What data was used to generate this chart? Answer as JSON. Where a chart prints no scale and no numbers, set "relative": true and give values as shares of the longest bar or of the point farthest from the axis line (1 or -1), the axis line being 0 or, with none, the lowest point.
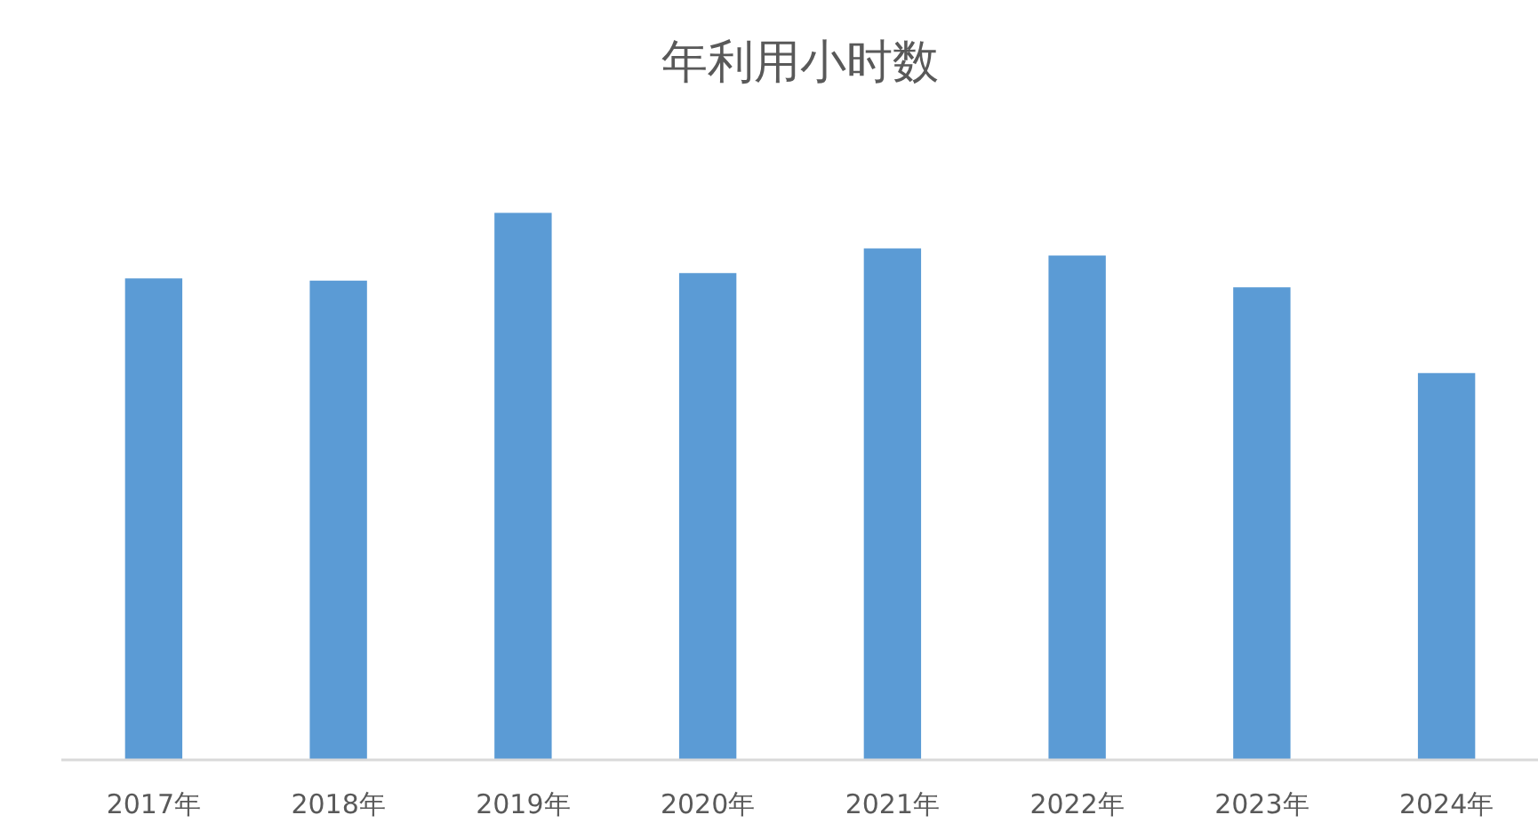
{
  "chart_data": {
    "type": "bar",
    "title": "年利用小时数",
    "categories": [
      "2017年",
      "2018年",
      "2019年",
      "2020年",
      "2021年",
      "2022年",
      "2023年",
      "2024年"
    ],
    "values": [
      0.88,
      0.876,
      1,
      0.89,
      0.935,
      0.922,
      0.864,
      0.707
    ],
    "color": "#5b9bd5",
    "relative": true
  }
}
